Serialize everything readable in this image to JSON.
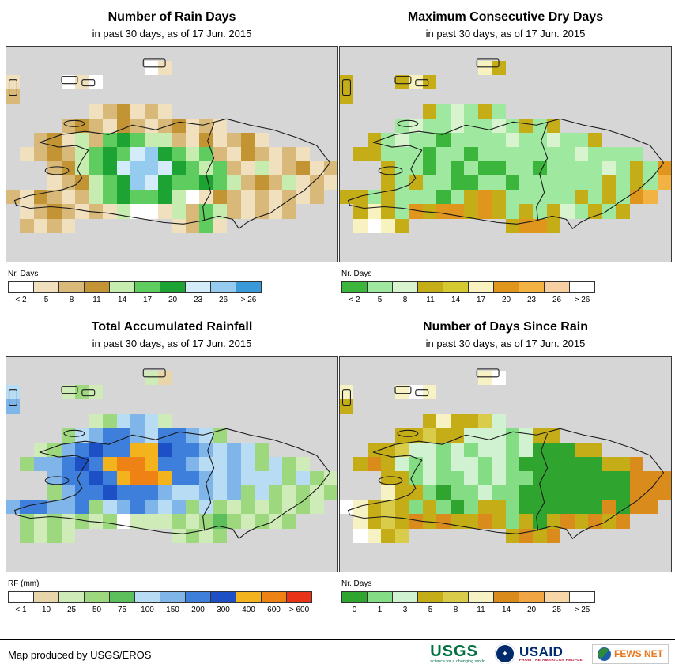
{
  "panels": [
    {
      "id": "rain-days",
      "title": "Number of Rain Days",
      "subtitle": "in past 30 days, as of 17 Jun. 2015",
      "legend_label": "Nr. Days",
      "legend": {
        "labels": [
          "< 2",
          "5",
          "8",
          "11",
          "14",
          "17",
          "20",
          "23",
          "26",
          "> 26"
        ],
        "colors": [
          "#ffffff",
          "#f0e0bd",
          "#d9b97a",
          "#c29434",
          "#c6ecaf",
          "#5ecc5e",
          "#1ca333",
          "#d4ecf9",
          "#94cbef",
          "#3a9ad9"
        ]
      },
      "map": {
        "sea": "#d6d6d6",
        "palette": {
          "W": "#ffffff",
          "b": "#f0e0bd",
          "c": "#d9b97a",
          "d": "#c29434",
          "e": "#c6ecaf",
          "f": "#5ecc5e",
          "g": "#1ca333",
          "h": "#d4ecf9",
          "i": "#94cbef",
          "j": "#3a9ad9"
        },
        "grid": [
          "........................",
          "..........Wb............",
          "b...WbW.................",
          "c.......................",
          "......bcdbcb............",
          "....cdcbdcbcdbcb........",
          "..cdbecfgfeecbdbcdb.....",
          ".bcdcefgfhigfefcbdcbcb..",
          "...cdefghiihgfefcbebcdbc",
          "...bcdefgihgffgfecdcebcb",
          "cbdcbcefgffgeWbdcbcbcbc.",
          ".bcdcbcbeWWbecfecbcbc...",
          ".cbcb.......bcfb........",
          "........................",
          "........................"
        ]
      }
    },
    {
      "id": "dry-days",
      "title": "Maximum Consecutive Dry Days",
      "subtitle": "in past 30 days, as of 17 Jun. 2015",
      "legend_label": "Nr. Days",
      "legend": {
        "labels": [
          "< 2",
          "5",
          "8",
          "11",
          "14",
          "17",
          "20",
          "23",
          "26",
          "> 26"
        ],
        "colors": [
          "#3bb53b",
          "#9fe89f",
          "#d8f4cf",
          "#c4ad17",
          "#d4c931",
          "#f7f2c0",
          "#e0951c",
          "#f2b343",
          "#f7cfa3",
          "#ffffff"
        ]
      },
      "map": {
        "sea": "#d6d6d6",
        "palette": {
          "A": "#3bb53b",
          "B": "#9fe89f",
          "C": "#d8f4cf",
          "D": "#c4ad17",
          "E": "#d4c931",
          "F": "#f7f2c0",
          "G": "#e0951c",
          "H": "#f2b343",
          "I": "#f7cfa3",
          "J": "#ffffff"
        },
        "grid": [
          "........................",
          "..........FD............",
          "D...DFD.................",
          "D.......................",
          "......DBCBDB............",
          "....BCBBCBBCBDBD........",
          "..DBCBBABBBBCBBCBBD.....",
          ".DDBBBABBABBBBBBBCBBBB..",
          "...DBBABABAABBABBBBCBDBG",
          "...DBDBBAABBABBBBBBDBDBH",
          "DDBDBBBABDGDBBBBBDBDBGH.",
          ".DFDBGDGGDGDBDBDCBDBD...",
          ".FJFD.......DGGD........",
          "........................",
          "........................"
        ]
      }
    },
    {
      "id": "rainfall",
      "title": "Total Accumulated Rainfall",
      "subtitle": "in past 30 days, as of 17 Jun. 2015",
      "legend_label": "RF (mm)",
      "legend": {
        "labels": [
          "< 1",
          "10",
          "25",
          "50",
          "75",
          "100",
          "150",
          "200",
          "300",
          "400",
          "600",
          "> 600"
        ],
        "colors": [
          "#ffffff",
          "#e8d5a9",
          "#cfecb8",
          "#9dd77e",
          "#5cbf5c",
          "#b8dcf4",
          "#7fb5e8",
          "#3f7fdc",
          "#1c50c4",
          "#f2b31c",
          "#ef8214",
          "#e83318"
        ]
      },
      "map": {
        "sea": "#d6d6d6",
        "palette": {
          "a": "#ffffff",
          "b": "#e8d5a9",
          "c": "#cfecb8",
          "d": "#9dd77e",
          "e": "#5cbf5c",
          "f": "#b8dcf4",
          "g": "#7fb5e8",
          "h": "#3f7fdc",
          "i": "#1c50c4",
          "j": "#f2b31c",
          "k": "#ef8214",
          "l": "#e83318"
        },
        "grid": [
          "........................",
          "..........cb............",
          "f...cdc.................",
          "g.......................",
          "......cdfgfc............",
          "....dfghhgfhhgfd........",
          "..cdghihhjjihhgfgfd.....",
          ".dgghihjkkjhhgffgfdfdc..",
          "...ghhihjkkjhhgfgfffdfdc",
          "...dghhihhhgffgfgdfdcdcd",
          "ghhgghdfghgfgdfdcdcdcdc.",
          ".dcdcdcdacccdcdedcdcd...",
          ".dcdc.......cdcd........",
          "........................",
          "........................"
        ]
      }
    },
    {
      "id": "days-since-rain",
      "title": "Number of Days Since Rain",
      "subtitle": "in past 30 days, as of 17 Jun. 2015",
      "legend_label": "Nr. Days",
      "legend": {
        "labels": [
          "0",
          "1",
          "3",
          "5",
          "8",
          "11",
          "14",
          "20",
          "25",
          "> 25"
        ],
        "colors": [
          "#2fa52f",
          "#84dc84",
          "#d0f2d0",
          "#c4ad17",
          "#d8cc4a",
          "#f7f2c4",
          "#d98c1c",
          "#f2a643",
          "#f7d6a8",
          "#ffffff"
        ]
      },
      "map": {
        "sea": "#d6d6d6",
        "palette": {
          "A": "#2fa52f",
          "B": "#84dc84",
          "C": "#d0f2d0",
          "D": "#c4ad17",
          "E": "#d8cc4a",
          "F": "#f7f2c4",
          "G": "#d98c1c",
          "H": "#f2a643",
          "I": "#f7d6a8",
          "J": "#ffffff"
        },
        "grid": [
          "........................",
          "..........FJ............",
          "F...FJF.................",
          "D.......................",
          "......DFDDEC............",
          "....DDEDDCCCBCDD........",
          "..DDECCBCBCCBCAAADD.....",
          ".DGDCBCBCCBCBAAAAAADDG..",
          "...DDBCBBCBCBBAAAAAAAGGG",
          "...FDDBABBCBBAAAAAAAAGGG",
          "JFDEDBDBABDDBAAAAAAGAGG.",
          ".FDEDGDGDDGDBDADGDGDG...",
          ".JFDE.......DGDG........",
          "........................",
          "........................"
        ]
      }
    }
  ],
  "footer": {
    "credit": "Map produced by USGS/EROS",
    "logos": {
      "usgs": {
        "text": "USGS",
        "tagline": "science for a changing world"
      },
      "usaid": {
        "text": "USAID",
        "tagline": "FROM THE AMERICAN PEOPLE"
      },
      "fewsnet": {
        "text": "FEWS NET"
      }
    }
  }
}
